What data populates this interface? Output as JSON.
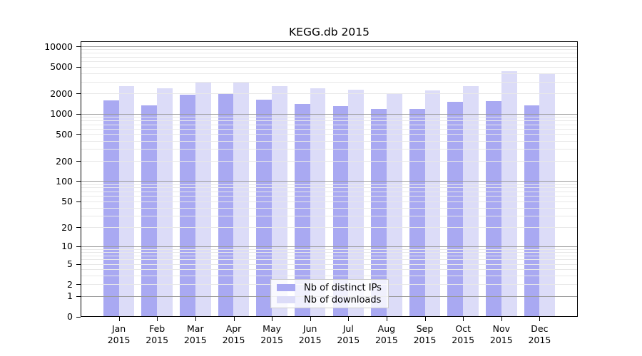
{
  "chart_data": {
    "type": "bar",
    "title": "KEGG.db 2015",
    "categories": [
      "Jan",
      "Feb",
      "Mar",
      "Apr",
      "May",
      "Jun",
      "Jul",
      "Aug",
      "Sep",
      "Oct",
      "Nov",
      "Dec"
    ],
    "category_year": "2015",
    "series": [
      {
        "name": "Nb of distinct IPs",
        "color": "#a9a9f2",
        "values": [
          1600,
          1350,
          1900,
          1950,
          1630,
          1390,
          1290,
          1170,
          1180,
          1510,
          1540,
          1330
        ]
      },
      {
        "name": "Nb of downloads",
        "color": "#dcdcf8",
        "values": [
          2550,
          2370,
          2950,
          2950,
          2550,
          2370,
          2250,
          2030,
          2200,
          2570,
          4300,
          3850
        ]
      }
    ],
    "xlabel": "",
    "ylabel": "",
    "y_axis": {
      "scale": "log1p",
      "tick_values": [
        0,
        1,
        2,
        5,
        10,
        20,
        50,
        100,
        200,
        500,
        1000,
        2000,
        5000,
        10000
      ],
      "ylim": [
        0,
        11800
      ]
    },
    "grid": {
      "major_color": "#9a9a9a",
      "minor_color": "#e8e8e8",
      "major_at_powers_of_10": true,
      "minor_at": "2-9 within each decade"
    },
    "legend": {
      "position": "bottom-center"
    },
    "colors": {
      "axis": "#000000",
      "background": "#ffffff"
    }
  }
}
